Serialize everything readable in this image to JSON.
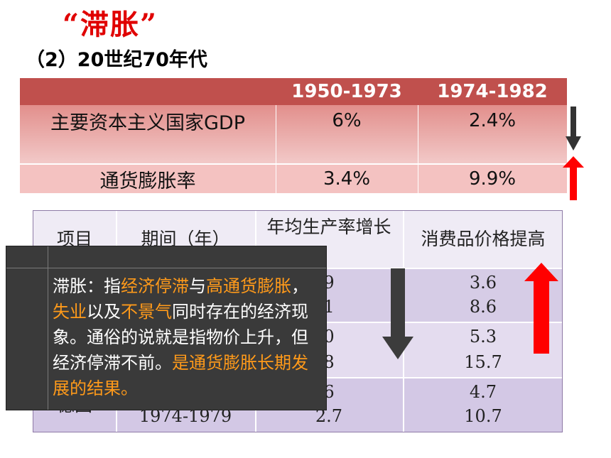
{
  "title": "“滞胀”",
  "subtitle": "（2）20世纪70年代",
  "table1": {
    "headers": [
      "",
      "1950-1973",
      "1974-1982"
    ],
    "rows": [
      {
        "label": "主要资本主义国家GDP",
        "v1": "6%",
        "v2": "2.4%"
      },
      {
        "label": "通货膨胀率",
        "v1": "3.4%",
        "v2": "9.9%"
      }
    ]
  },
  "table2": {
    "headers": [
      "项目",
      "期间（年）",
      "年均生产率增长",
      "消费品价格提高"
    ],
    "rows": [
      {
        "item": "",
        "period": "",
        "prod": [
          "9",
          "1"
        ],
        "price": [
          "3.6",
          "8.6"
        ]
      },
      {
        "item": "",
        "period": "",
        "prod": [
          "0",
          "8"
        ],
        "price": [
          "5.3",
          "15.7"
        ]
      },
      {
        "item": "德国",
        "period": "1974-1979",
        "prod": [
          "6",
          "2.7"
        ],
        "price": [
          "4.7",
          "10.7"
        ]
      }
    ]
  },
  "overlay": {
    "segments": [
      {
        "text": "滞胀：指",
        "hl": false
      },
      {
        "text": "经济停滞",
        "hl": true
      },
      {
        "text": "与",
        "hl": false
      },
      {
        "text": "高通货膨胀",
        "hl": true
      },
      {
        "text": "，",
        "hl": false
      },
      {
        "text": "失业",
        "hl": true
      },
      {
        "text": "以及",
        "hl": false
      },
      {
        "text": "不景气",
        "hl": true
      },
      {
        "text": "同时存在的经济现象。通俗的说就是指物价上升，但经济停滞不前。",
        "hl": false
      },
      {
        "text": "是通货膨胀长期发展的结果。",
        "hl": true
      }
    ]
  },
  "colors": {
    "title_red": "#e00000",
    "header_red": "#c0504d",
    "highlight_orange": "#ff9a1a",
    "arrow_red": "#ff0000",
    "arrow_dark": "#333333"
  }
}
